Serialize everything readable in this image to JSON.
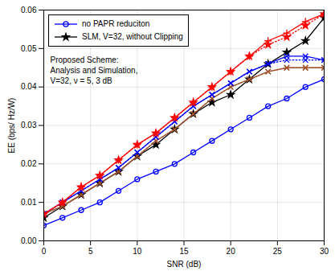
{
  "chart_data": {
    "type": "line",
    "xlabel": "SNR (dB)",
    "ylabel": "EE (bps/ Hz/W)",
    "x": [
      0,
      2,
      4,
      6,
      8,
      10,
      12,
      14,
      16,
      18,
      20,
      22,
      24,
      26,
      28,
      30
    ],
    "series": [
      {
        "name": "no PAPR reduciton",
        "color": "#0000FF",
        "marker": "circle",
        "line_style": "solid",
        "values": [
          0.004,
          0.006,
          0.008,
          0.01,
          0.013,
          0.016,
          0.018,
          0.02,
          0.023,
          0.026,
          0.029,
          0.032,
          0.035,
          0.037,
          0.04,
          0.042
        ]
      },
      {
        "name": "SLM, V=32, without Clipping",
        "color": "#000000",
        "marker": "star",
        "line_style": "solid",
        "values": [
          0.006,
          0.009,
          0.012,
          0.015,
          0.018,
          0.022,
          0.025,
          0.029,
          0.033,
          0.036,
          0.038,
          0.042,
          0.046,
          0.049,
          0.052,
          0.058
        ]
      },
      {
        "color": "#A0522D",
        "marker": "x",
        "line_style": "solid",
        "values": [
          0.007,
          0.009,
          0.012,
          0.015,
          0.018,
          0.022,
          0.026,
          0.029,
          0.033,
          0.037,
          0.04,
          0.042,
          0.044,
          0.045,
          0.045,
          0.045
        ]
      },
      {
        "color": "#A0522D",
        "marker": "x",
        "line_style": "dotted",
        "values": [
          0.007,
          0.009,
          0.012,
          0.015,
          0.018,
          0.022,
          0.026,
          0.029,
          0.033,
          0.037,
          0.04,
          0.042,
          0.044,
          0.045,
          0.045,
          0.045
        ]
      },
      {
        "color": "#0000FF",
        "marker": "x",
        "line_style": "solid",
        "values": [
          0.007,
          0.01,
          0.013,
          0.016,
          0.019,
          0.023,
          0.027,
          0.031,
          0.035,
          0.038,
          0.041,
          0.044,
          0.046,
          0.048,
          0.048,
          0.047
        ]
      },
      {
        "color": "#0000FF",
        "marker": "x",
        "line_style": "dotted",
        "values": [
          0.007,
          0.01,
          0.013,
          0.016,
          0.019,
          0.023,
          0.027,
          0.031,
          0.035,
          0.038,
          0.041,
          0.044,
          0.046,
          0.047,
          0.047,
          0.047
        ]
      },
      {
        "color": "#FF0000",
        "marker": "plus",
        "line_style": "solid",
        "values": [
          0.007,
          0.01,
          0.014,
          0.017,
          0.021,
          0.025,
          0.028,
          0.032,
          0.036,
          0.04,
          0.044,
          0.048,
          0.052,
          0.054,
          0.057,
          0.059
        ]
      },
      {
        "color": "#FF0000",
        "marker": "star",
        "line_style": "dotted",
        "values": [
          0.007,
          0.01,
          0.014,
          0.017,
          0.021,
          0.025,
          0.028,
          0.032,
          0.036,
          0.04,
          0.044,
          0.048,
          0.051,
          0.053,
          0.056,
          0.059
        ]
      }
    ],
    "annotations": [
      "Proposed Scheme:\nAnalysis and Simulation,\nV=32, ν = 5, 3 dB"
    ],
    "xlim": [
      0,
      30
    ],
    "ylim": [
      0,
      0.06
    ],
    "xticks": [
      0,
      5,
      10,
      15,
      20,
      25,
      30
    ],
    "yticks": [
      {
        "value": 0,
        "label": "0.00"
      },
      0.01,
      0.02,
      0.03,
      0.04,
      0.05,
      0.06
    ],
    "grid": true,
    "legend": "upper left"
  }
}
